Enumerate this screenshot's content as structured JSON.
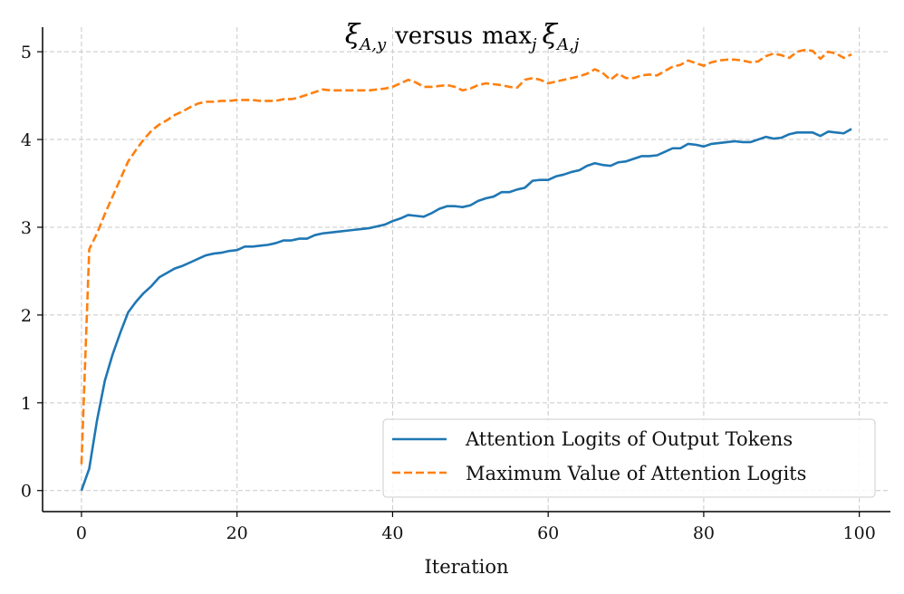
{
  "chart_data": {
    "type": "line",
    "title": {
      "symbol": "ξ",
      "symbol_sub": "A,y",
      "word_versus": "versus",
      "max_text": "max",
      "max_sub": "j",
      "symbol2": "ξ",
      "symbol2_sub": "A,j"
    },
    "xlabel": "Iteration",
    "ylabel": "",
    "xlim": [
      -5,
      104
    ],
    "ylim": [
      -0.24,
      5.28
    ],
    "x_ticks": [
      0,
      20,
      40,
      60,
      80,
      100
    ],
    "y_ticks": [
      0,
      1,
      2,
      3,
      4,
      5
    ],
    "grid": true,
    "legend_position": "lower-right",
    "series": [
      {
        "name": "Attention Logits of Output Tokens",
        "color": "#1f77b4",
        "style": "solid",
        "x": [
          0,
          1,
          2,
          3,
          4,
          5,
          6,
          7,
          8,
          9,
          10,
          11,
          12,
          13,
          14,
          15,
          16,
          17,
          18,
          19,
          20,
          21,
          22,
          23,
          24,
          25,
          26,
          27,
          28,
          29,
          30,
          31,
          32,
          33,
          34,
          35,
          36,
          37,
          38,
          39,
          40,
          41,
          42,
          43,
          44,
          45,
          46,
          47,
          48,
          49,
          50,
          51,
          52,
          53,
          54,
          55,
          56,
          57,
          58,
          59,
          60,
          61,
          62,
          63,
          64,
          65,
          66,
          67,
          68,
          69,
          70,
          71,
          72,
          73,
          74,
          75,
          76,
          77,
          78,
          79,
          80,
          81,
          82,
          83,
          84,
          85,
          86,
          87,
          88,
          89,
          90,
          91,
          92,
          93,
          94,
          95,
          96,
          97,
          98,
          99
        ],
        "values": [
          0.0,
          0.25,
          0.8,
          1.25,
          1.55,
          1.8,
          2.03,
          2.15,
          2.25,
          2.33,
          2.43,
          2.48,
          2.53,
          2.56,
          2.6,
          2.64,
          2.68,
          2.7,
          2.71,
          2.73,
          2.74,
          2.78,
          2.78,
          2.79,
          2.8,
          2.82,
          2.85,
          2.85,
          2.87,
          2.87,
          2.91,
          2.93,
          2.94,
          2.95,
          2.96,
          2.97,
          2.98,
          2.99,
          3.01,
          3.03,
          3.07,
          3.1,
          3.14,
          3.13,
          3.12,
          3.16,
          3.21,
          3.24,
          3.24,
          3.23,
          3.25,
          3.3,
          3.33,
          3.35,
          3.4,
          3.4,
          3.43,
          3.45,
          3.53,
          3.54,
          3.54,
          3.58,
          3.6,
          3.63,
          3.65,
          3.7,
          3.73,
          3.71,
          3.7,
          3.74,
          3.75,
          3.78,
          3.81,
          3.81,
          3.82,
          3.86,
          3.9,
          3.9,
          3.95,
          3.94,
          3.92,
          3.95,
          3.96,
          3.97,
          3.98,
          3.97,
          3.97,
          4.0,
          4.03,
          4.01,
          4.02,
          4.06,
          4.08,
          4.08,
          4.08,
          4.04,
          4.09,
          4.08,
          4.07,
          4.12
        ]
      },
      {
        "name": "Maximum Value of Attention Logits",
        "color": "#ff7f0e",
        "style": "dashed",
        "x": [
          0,
          1,
          2,
          3,
          4,
          5,
          6,
          7,
          8,
          9,
          10,
          11,
          12,
          13,
          14,
          15,
          16,
          17,
          18,
          19,
          20,
          21,
          22,
          23,
          24,
          25,
          26,
          27,
          28,
          29,
          30,
          31,
          32,
          33,
          34,
          35,
          36,
          37,
          38,
          39,
          40,
          41,
          42,
          43,
          44,
          45,
          46,
          47,
          48,
          49,
          50,
          51,
          52,
          53,
          54,
          55,
          56,
          57,
          58,
          59,
          60,
          61,
          62,
          63,
          64,
          65,
          66,
          67,
          68,
          69,
          70,
          71,
          72,
          73,
          74,
          75,
          76,
          77,
          78,
          79,
          80,
          81,
          82,
          83,
          84,
          85,
          86,
          87,
          88,
          89,
          90,
          91,
          92,
          93,
          94,
          95,
          96,
          97,
          98,
          99
        ],
        "values": [
          0.3,
          2.75,
          2.93,
          3.15,
          3.35,
          3.55,
          3.75,
          3.88,
          4.0,
          4.1,
          4.17,
          4.22,
          4.28,
          4.32,
          4.37,
          4.41,
          4.43,
          4.43,
          4.44,
          4.44,
          4.45,
          4.45,
          4.45,
          4.44,
          4.44,
          4.44,
          4.46,
          4.46,
          4.48,
          4.51,
          4.54,
          4.57,
          4.56,
          4.56,
          4.56,
          4.56,
          4.56,
          4.56,
          4.57,
          4.58,
          4.6,
          4.64,
          4.68,
          4.65,
          4.6,
          4.6,
          4.61,
          4.62,
          4.6,
          4.56,
          4.58,
          4.62,
          4.64,
          4.63,
          4.62,
          4.6,
          4.59,
          4.68,
          4.7,
          4.68,
          4.64,
          4.66,
          4.68,
          4.7,
          4.72,
          4.75,
          4.8,
          4.76,
          4.68,
          4.75,
          4.7,
          4.7,
          4.73,
          4.74,
          4.73,
          4.78,
          4.83,
          4.85,
          4.9,
          4.87,
          4.84,
          4.88,
          4.9,
          4.91,
          4.91,
          4.9,
          4.88,
          4.89,
          4.95,
          4.98,
          4.96,
          4.93,
          5.0,
          5.02,
          5.01,
          4.92,
          5.0,
          4.98,
          4.93,
          4.97
        ]
      }
    ]
  }
}
